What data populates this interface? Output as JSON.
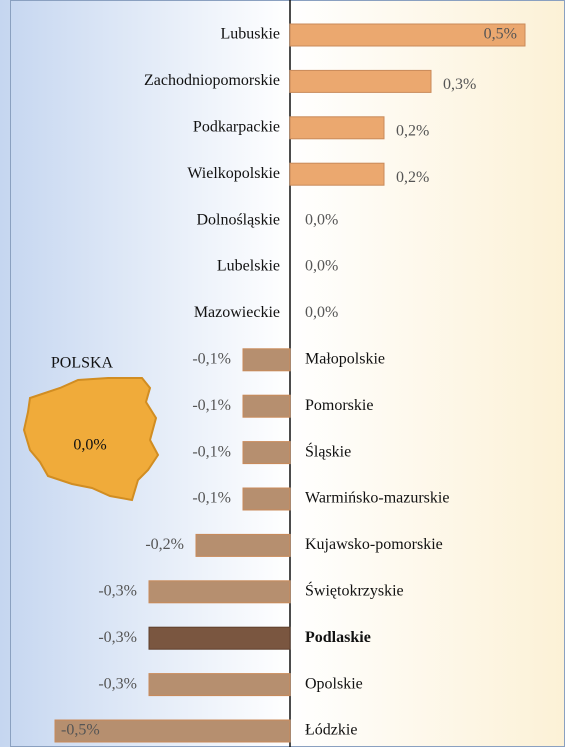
{
  "chart_data": {
    "type": "bar",
    "orientation": "horizontal",
    "categories": [
      "Lubuskie",
      "Zachodniopomorskie",
      "Podkarpackie",
      "Wielkopolskie",
      "Dolnośląskie",
      "Lubelskie",
      "Mazowieckie",
      "Małopolskie",
      "Pomorskie",
      "Śląskie",
      "Warmińsko-mazurskie",
      "Kujawsko-pomorskie",
      "Świętokrzyskie",
      "Podlaskie",
      "Opolskie",
      "Łódzkie"
    ],
    "values": [
      0.5,
      0.3,
      0.2,
      0.2,
      0.0,
      0.0,
      0.0,
      -0.1,
      -0.1,
      -0.1,
      -0.1,
      -0.2,
      -0.3,
      -0.3,
      -0.3,
      -0.5
    ],
    "value_labels": [
      "0,5%",
      "0,3%",
      "0,2%",
      "0,2%",
      "0,0%",
      "0,0%",
      "0,0%",
      "-0,1%",
      "-0,1%",
      "-0,1%",
      "-0,1%",
      "-0,2%",
      "-0,3%",
      "-0,3%",
      "-0,3%",
      "-0,5%"
    ],
    "xlim": [
      -0.5,
      0.5
    ],
    "positive_color": "#eba86f",
    "negative_color": "#b68f6f",
    "highlight_color": "#7a5640",
    "highlight": "Podlaskie",
    "poland": {
      "label": "POLSKA",
      "value": 0.0,
      "value_label": "0,0%",
      "color": "#f0ab3a"
    }
  }
}
